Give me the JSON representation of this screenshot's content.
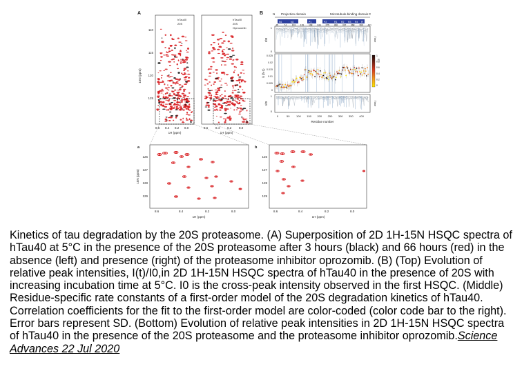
{
  "figure": {
    "panel_a": {
      "label": "A",
      "legend_left": [
        "hTau40",
        "20S"
      ],
      "legend_right": [
        "hTau40",
        "20S",
        "Oprozomib"
      ],
      "y_ticks": [
        "110",
        "115",
        "120",
        "125"
      ],
      "x_ticks": [
        "8.6",
        "8.4",
        "8.2",
        "8.0"
      ],
      "ylabel": "15N (ppm)",
      "xlabel": "1H (ppm)",
      "inset_left": "a",
      "inset_right": "b"
    },
    "panel_b": {
      "label": "B",
      "domains": [
        "N",
        "Projection domain",
        "Microtubule-binding domain",
        "C"
      ],
      "regions": [
        "N1",
        "N2",
        "P1",
        "P2",
        "R1",
        "R2",
        "R3",
        "R4",
        "R'"
      ],
      "residue_ticks": [
        "45",
        "74",
        "103",
        "151",
        "198",
        "244",
        "275",
        "306",
        "337",
        "368",
        "399",
        "441"
      ],
      "top_ylabel": "I/I0",
      "top_side": "Time",
      "middle_ylabel": "k (h-1)",
      "middle_yticks": [
        "0.025",
        "0.02",
        "0.015",
        "0.01",
        "0.005",
        "0"
      ],
      "colorbar_label": "R2",
      "colorbar_ticks": [
        "1",
        "0.8",
        "0.6",
        "0.4",
        "0.2",
        "0"
      ],
      "bottom_ylabel": "I/I0",
      "bottom_side": "Time",
      "x_ticks": [
        "0",
        "50",
        "100",
        "150",
        "200",
        "250",
        "300",
        "350",
        "400"
      ],
      "xlabel": "Residue number"
    },
    "zoom_a": {
      "label": "a",
      "y_ticks": [
        "126",
        "127",
        "128",
        "129"
      ],
      "x_ticks": [
        "8.6",
        "8.4",
        "8.2",
        "8.0"
      ],
      "ylabel": "15N (ppm)",
      "xlabel": "1H (ppm)"
    },
    "zoom_b": {
      "label": "b",
      "y_ticks": [
        "126",
        "127",
        "128",
        "129"
      ],
      "x_ticks": [
        "8.6",
        "8.4",
        "8.2",
        "8.0"
      ],
      "xlabel": "1H (ppm)"
    }
  },
  "caption": {
    "text": "Kinetics of tau degradation by the 20S proteasome. (A) Superposition of 2D 1H-15N HSQC spectra of hTau40 at 5°C in the presence of the 20S proteasome after 3 hours (black) and 66 hours (red) in the absence (left) and presence (right) of the proteasome inhibitor oprozomib. (B) (Top) Evolution of relative peak intensities, I(t)/I0,in 2D 1H-15N HSQC spectra of hTau40 in the presence of 20S with increasing incubation time at 5°C. I0 is the cross-peak intensity observed in the first HSQC. (Middle) Residue-specific rate constants of a first-order model of the 20S degradation kinetics of hTau40. Correlation coefficients for the fit to the first-order model are color-coded (color code bar to the right). Error bars represent SD. (Bottom) Evolution of relative peak intensities in 2D 1H-15N HSQC spectra of hTau40 in the presence of the 20S proteasome and the proteasome inhibitor oprozomib.",
    "journal": "Science Advances  22 Jul 2020"
  },
  "colors": {
    "spectrum_red": "#d7191c",
    "spectrum_black": "#111111",
    "colorbar_top": "#1a0a08",
    "colorbar_mid": "#d63a1e",
    "colorbar_bottom": "#ffe600"
  }
}
